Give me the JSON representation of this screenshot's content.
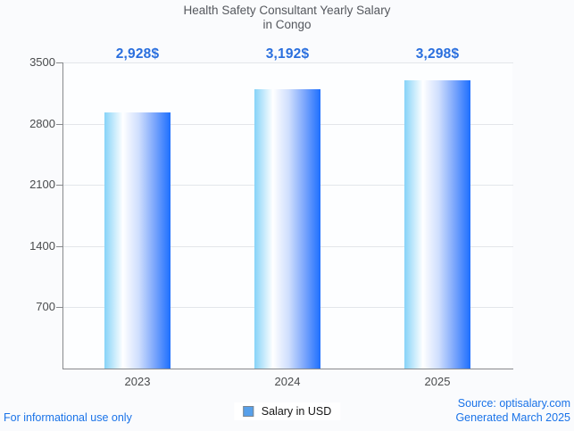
{
  "title": {
    "line1": "Health Safety Consultant Yearly Salary",
    "line2": "in Congo"
  },
  "legend": {
    "label": "Salary in USD"
  },
  "footer": {
    "disclaimer": "For informational use only",
    "source": "Source: optisalary.com",
    "generated": "Generated March 2025"
  },
  "colors": {
    "page_bg": "#fafbfd",
    "plot_bg": "#fdfeff",
    "gridline": "#e3e6ea",
    "axis_line": "#87898c",
    "tick_label": "#4a4c4e",
    "title_text": "#55585e",
    "value_label": "#2a6fde",
    "footer_link": "#1a73e8",
    "legend_text": "#161616",
    "legend_swatch_fill": "#57a0ea",
    "legend_swatch_border": "#7b858e",
    "bar_gradient": [
      "#86d3f8 0%",
      "#ffffff 28%",
      "#cfdefd 52%",
      "#7ba6fc 76%",
      "#1d6ffe 100%"
    ]
  },
  "chart_data": {
    "type": "bar",
    "title": "Health Safety Consultant Yearly Salary in Congo",
    "categories": [
      "2023",
      "2024",
      "2025"
    ],
    "series": [
      {
        "name": "Salary in USD",
        "values": [
          2928,
          3192,
          3298
        ]
      }
    ],
    "value_labels": [
      "2,928$",
      "3,192$",
      "3,298$"
    ],
    "xlabel": "",
    "ylabel": "",
    "ylim": [
      0,
      3500
    ],
    "yticks": [
      700,
      1400,
      2100,
      2800,
      3500
    ],
    "grid": true,
    "legend_position": "bottom-center"
  }
}
